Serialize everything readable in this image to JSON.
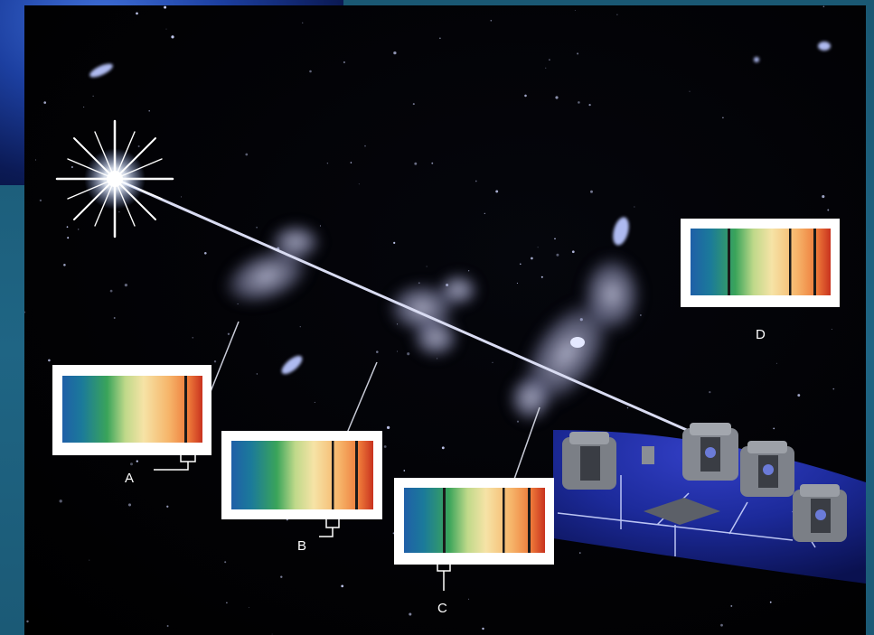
{
  "labels": {
    "a": "A",
    "b": "B",
    "c": "C",
    "d": "D"
  },
  "colors": {
    "frame": "#1d5b78",
    "sky": "#000000",
    "spectrum_blue": "#1f5fa8",
    "spectrum_green": "#3aa45a",
    "spectrum_yellow": "#f6e3a6",
    "spectrum_orange": "#f29a4a",
    "spectrum_red": "#c8321e",
    "planet": "#1c2a9a"
  },
  "icons": [
    "star-burst-icon",
    "telescope-icon",
    "gas-cloud-icon",
    "galaxy-icon"
  ]
}
